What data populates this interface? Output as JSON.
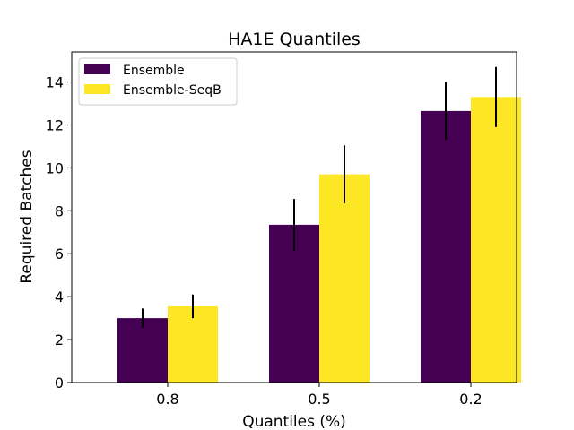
{
  "chart_data": {
    "type": "bar",
    "title": "HA1E Quantiles",
    "xlabel": "Quantiles (%)",
    "ylabel": "Required Batches",
    "categories": [
      "0.8",
      "0.5",
      "0.2"
    ],
    "series": [
      {
        "name": "Ensemble",
        "color": "#440154",
        "values": [
          3.0,
          7.35,
          12.65
        ],
        "errors": [
          0.45,
          1.2,
          1.35
        ]
      },
      {
        "name": "Ensemble-SeqB",
        "color": "#fde725",
        "values": [
          3.55,
          9.7,
          13.3
        ],
        "errors": [
          0.55,
          1.35,
          1.4
        ]
      }
    ],
    "ylim": [
      0,
      15.4
    ],
    "yticks": [
      0,
      2,
      4,
      6,
      8,
      10,
      12,
      14
    ],
    "grid": false,
    "legend_position": "top-left",
    "error_bar_color": "#000000"
  }
}
